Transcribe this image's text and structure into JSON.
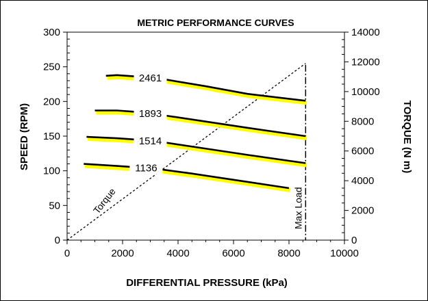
{
  "chart_data": {
    "type": "line",
    "title": "METRIC PERFORMANCE CURVES",
    "xlabel": "DIFFERENTIAL PRESSURE (kPa)",
    "ylabel": "SPEED (RPM)",
    "y2label": "TORQUE (N m)",
    "xlim": [
      0,
      10000
    ],
    "ylim": [
      0,
      300
    ],
    "y2lim": [
      0,
      14000
    ],
    "xticks": [
      "0",
      "2000",
      "4000",
      "6000",
      "8000",
      "10000"
    ],
    "yticks": [
      "0",
      "50",
      "100",
      "150",
      "200",
      "250",
      "300"
    ],
    "y2ticks": [
      "0",
      "2000",
      "4000",
      "6000",
      "8000",
      "10000",
      "12000",
      "14000"
    ],
    "grid": false,
    "speed_series": [
      {
        "name": "2461",
        "x": [
          1400,
          1800,
          2500,
          3500,
          5000,
          6500,
          8600
        ],
        "y": [
          237,
          238,
          236,
          232,
          222,
          211,
          201
        ]
      },
      {
        "name": "1893",
        "x": [
          1000,
          1800,
          2500,
          3500,
          5000,
          6500,
          8600
        ],
        "y": [
          187,
          187,
          185,
          180,
          171,
          162,
          150
        ]
      },
      {
        "name": "1514",
        "x": [
          700,
          1800,
          2500,
          3500,
          5000,
          6500,
          8600
        ],
        "y": [
          149,
          147,
          145,
          141,
          132,
          123,
          111
        ]
      },
      {
        "name": "1136",
        "x": [
          600,
          1800,
          2500,
          3200,
          4500,
          6000,
          8000
        ],
        "y": [
          110,
          107,
          105,
          103,
          96,
          87,
          75
        ]
      }
    ],
    "torque_series": {
      "name": "Torque",
      "x": [
        0,
        8600
      ],
      "y": [
        0,
        11900
      ]
    },
    "max_load": {
      "label": "Max Load",
      "x": 8600
    },
    "colors": {
      "highlight": "#ffff00",
      "line": "#000000",
      "background": "#ffffff"
    }
  }
}
